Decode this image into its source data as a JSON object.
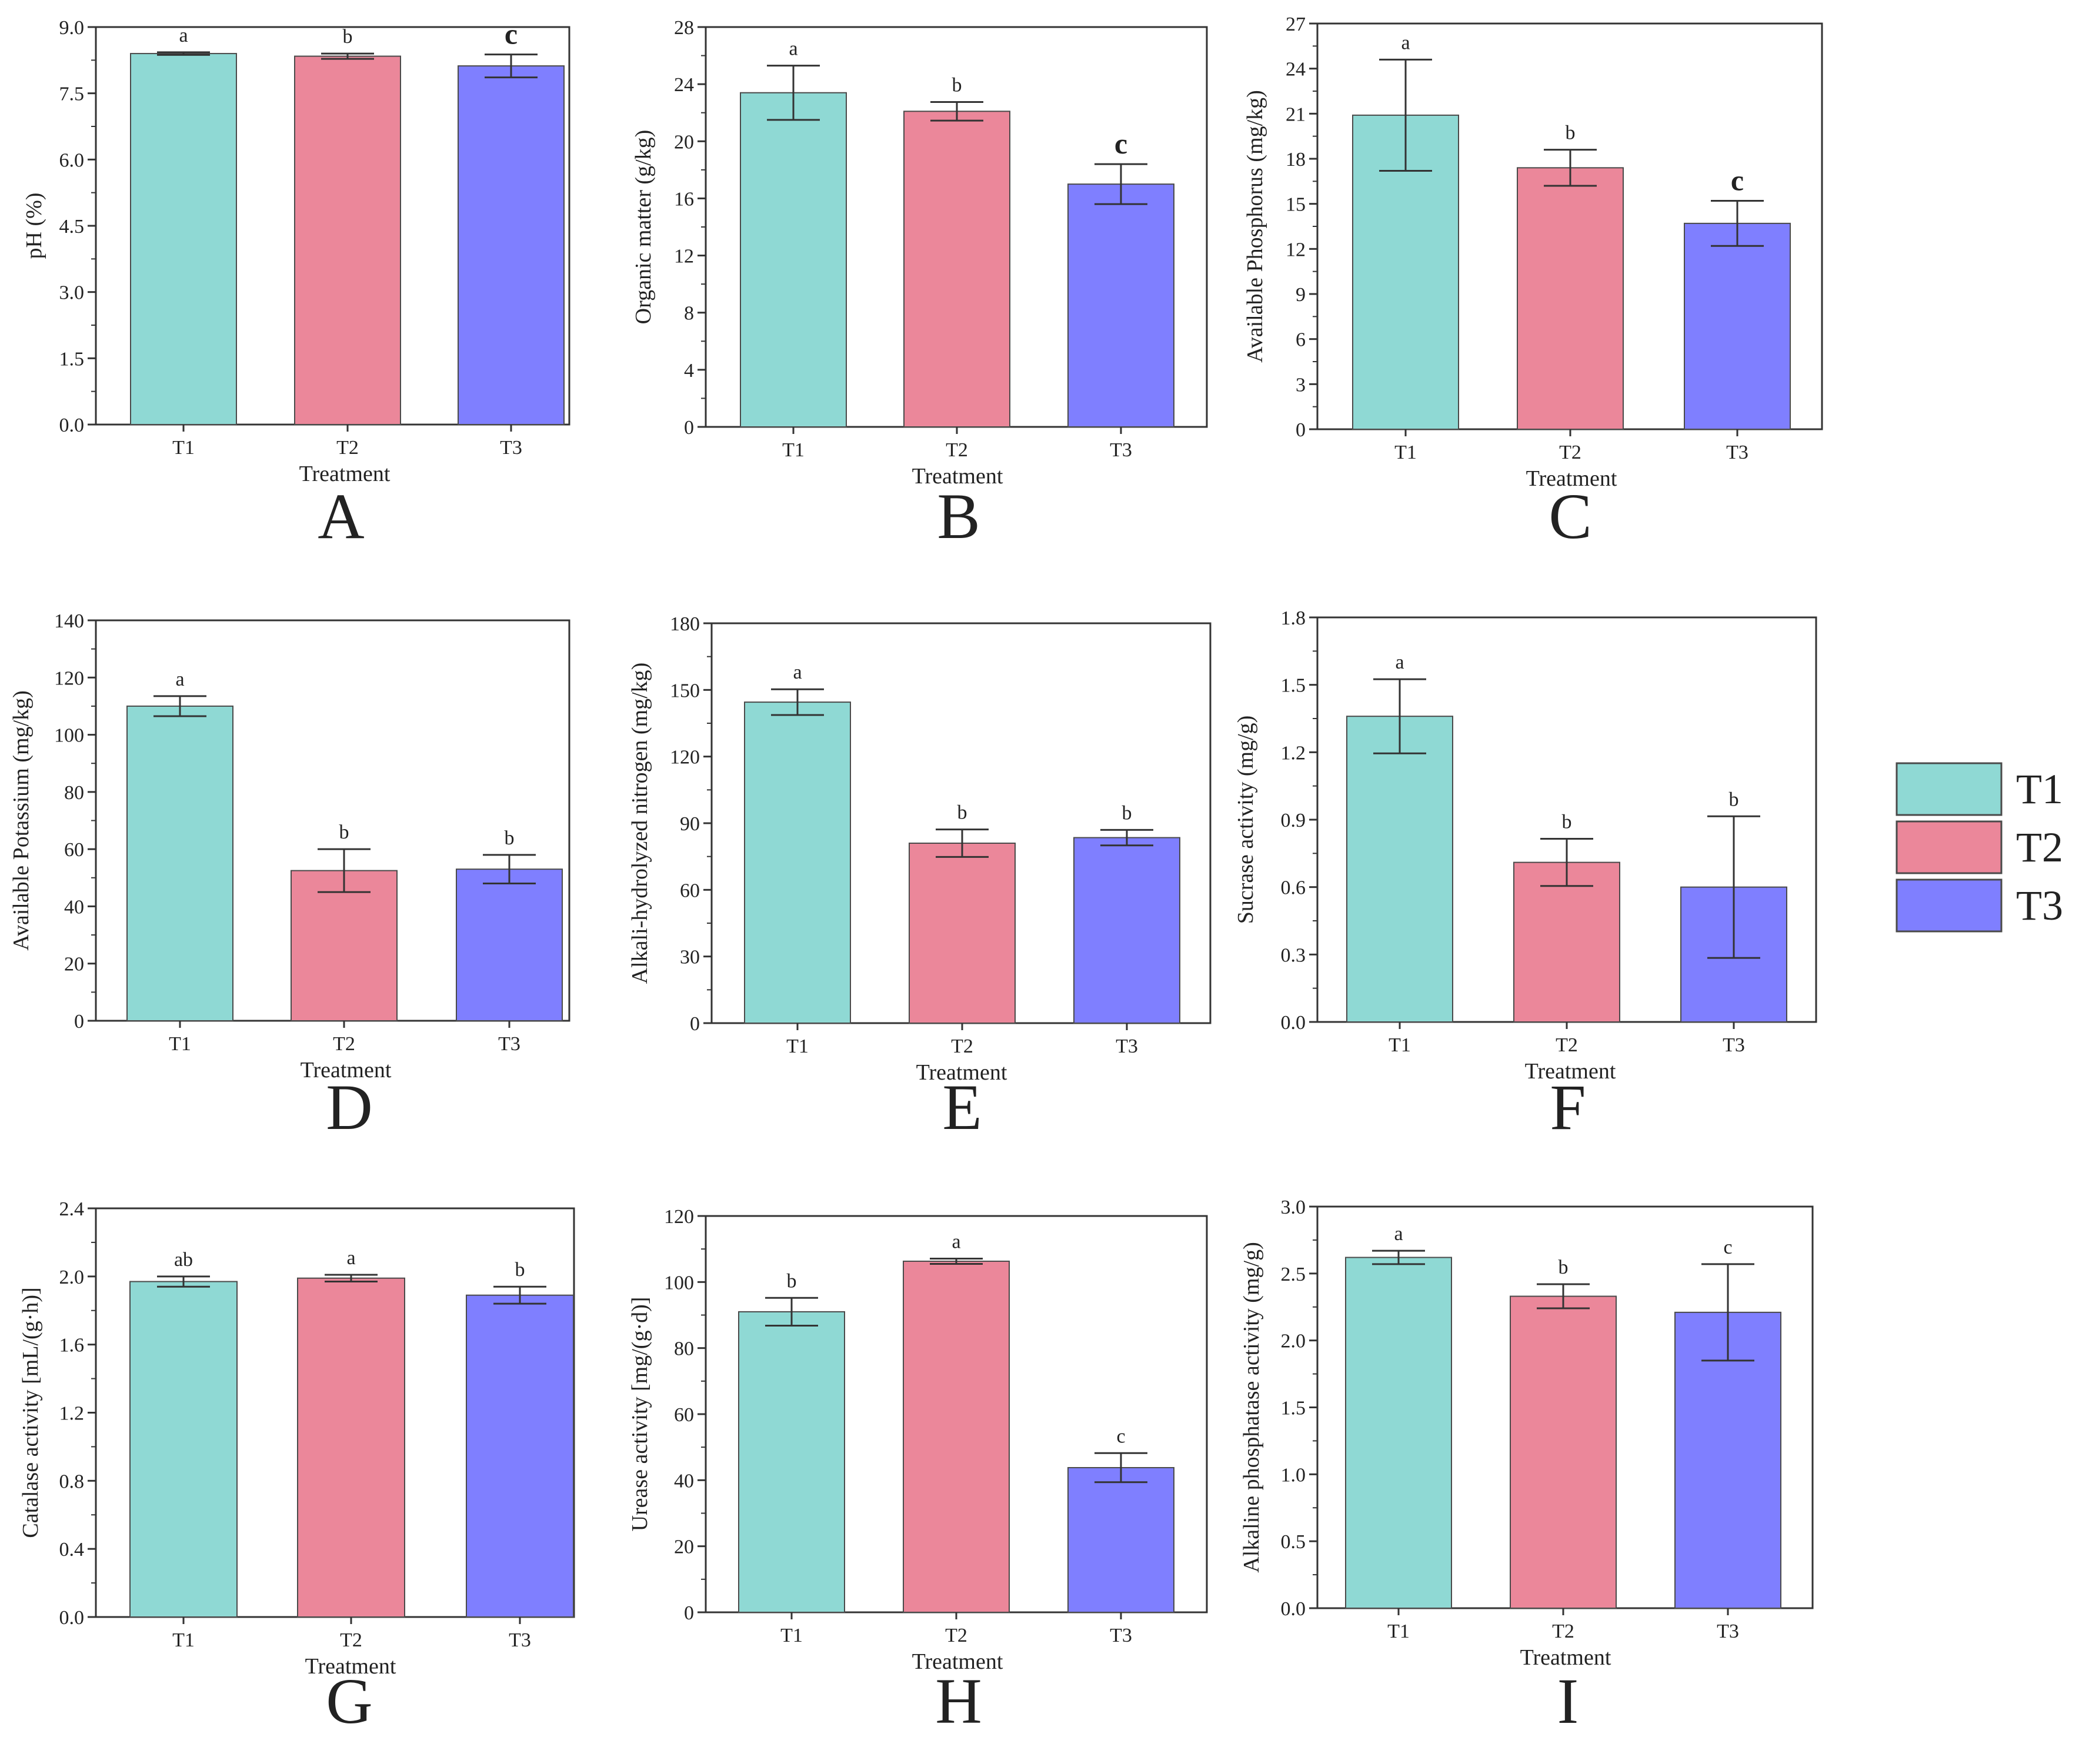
{
  "colors": {
    "T1": "#8fd9d4",
    "T2": "#eb879a",
    "T3": "#7f7fff",
    "axis": "#333333",
    "bar_edge": "#4a4a4a"
  },
  "legend": {
    "items": [
      {
        "label": "T1",
        "color": "#8fd9d4"
      },
      {
        "label": "T2",
        "color": "#eb879a"
      },
      {
        "label": "T3",
        "color": "#7f7fff"
      }
    ],
    "placement": "right"
  },
  "chart_data": [
    {
      "letter": "A",
      "type": "bar",
      "categories": [
        "T1",
        "T2",
        "T3"
      ],
      "values": [
        8.4,
        8.34,
        8.12
      ],
      "errors": [
        0.03,
        0.06,
        0.26
      ],
      "letters": [
        "a",
        "b",
        "c"
      ],
      "ylabel": "pH (%)",
      "xlabel": "Treatment",
      "ylim": [
        0,
        9
      ],
      "yticks": [
        "0.0",
        "1.5",
        "3.0",
        "4.5",
        "6.0",
        "7.5",
        "9.0"
      ]
    },
    {
      "letter": "B",
      "type": "bar",
      "categories": [
        "T1",
        "T2",
        "T3"
      ],
      "values": [
        23.4,
        22.1,
        17.0
      ],
      "errors": [
        1.9,
        0.65,
        1.4
      ],
      "letters": [
        "a",
        "b",
        "c"
      ],
      "ylabel": "Organic matter (g/kg)",
      "xlabel": "Treatment",
      "ylim": [
        0,
        28
      ],
      "yticks": [
        "0",
        "4",
        "8",
        "12",
        "16",
        "20",
        "24",
        "28"
      ]
    },
    {
      "letter": "C",
      "type": "bar",
      "categories": [
        "T1",
        "T2",
        "T3"
      ],
      "values": [
        20.9,
        17.4,
        13.7
      ],
      "errors": [
        3.7,
        1.2,
        1.5
      ],
      "letters": [
        "a",
        "b",
        "c"
      ],
      "ylabel": "Available Phosphorus (mg/kg)",
      "xlabel": "Treatment",
      "ylim": [
        0,
        27
      ],
      "yticks": [
        "0",
        "3",
        "6",
        "9",
        "12",
        "15",
        "18",
        "21",
        "24",
        "27"
      ]
    },
    {
      "letter": "D",
      "type": "bar",
      "categories": [
        "T1",
        "T2",
        "T3"
      ],
      "values": [
        110,
        52.5,
        53
      ],
      "errors": [
        3.5,
        7.5,
        5
      ],
      "letters": [
        "a",
        "b",
        "b"
      ],
      "ylabel": "Available Potassium (mg/kg)",
      "xlabel": "Treatment",
      "ylim": [
        0,
        140
      ],
      "yticks": [
        "0",
        "20",
        "40",
        "60",
        "80",
        "100",
        "120",
        "140"
      ]
    },
    {
      "letter": "E",
      "type": "bar",
      "categories": [
        "T1",
        "T2",
        "T3"
      ],
      "values": [
        144.5,
        81,
        83.5
      ],
      "errors": [
        5.8,
        6.2,
        3.5
      ],
      "letters": [
        "a",
        "b",
        "b"
      ],
      "ylabel": "Alkali-hydrolyzed nitrogen (mg/kg)",
      "xlabel": "Treatment",
      "ylim": [
        0,
        180
      ],
      "yticks": [
        "0",
        "30",
        "60",
        "90",
        "120",
        "150",
        "180"
      ]
    },
    {
      "letter": "F",
      "type": "bar",
      "categories": [
        "T1",
        "T2",
        "T3"
      ],
      "values": [
        1.36,
        0.71,
        0.6
      ],
      "errors": [
        0.165,
        0.105,
        0.315
      ],
      "letters": [
        "a",
        "b",
        "b"
      ],
      "ylabel": "Sucrase activity (mg/g)",
      "xlabel": "Treatment",
      "ylim": [
        0,
        1.8
      ],
      "yticks": [
        "0.0",
        "0.3",
        "0.6",
        "0.9",
        "1.2",
        "1.5",
        "1.8"
      ]
    },
    {
      "letter": "G",
      "type": "bar",
      "categories": [
        "T1",
        "T2",
        "T3"
      ],
      "values": [
        1.97,
        1.99,
        1.89
      ],
      "errors": [
        0.03,
        0.02,
        0.05
      ],
      "letters": [
        "ab",
        "a",
        "b"
      ],
      "ylabel": "Catalase activity [mL/(g·h)]",
      "xlabel": "Treatment",
      "ylim": [
        0,
        2.4
      ],
      "yticks": [
        "0.0",
        "0.4",
        "0.8",
        "1.2",
        "1.6",
        "2.0",
        "2.4"
      ]
    },
    {
      "letter": "H",
      "type": "bar",
      "categories": [
        "T1",
        "T2",
        "T3"
      ],
      "values": [
        91,
        106.3,
        43.8
      ],
      "errors": [
        4.2,
        0.8,
        4.4
      ],
      "letters": [
        "b",
        "a",
        "c"
      ],
      "ylabel": "Urease activity [mg/(g·d)]",
      "xlabel": "Treatment",
      "ylim": [
        0,
        120
      ],
      "yticks": [
        "0",
        "20",
        "40",
        "60",
        "80",
        "100",
        "120"
      ]
    },
    {
      "letter": "I",
      "type": "bar",
      "categories": [
        "T1",
        "T2",
        "T3"
      ],
      "values": [
        2.62,
        2.33,
        2.21
      ],
      "errors": [
        0.05,
        0.09,
        0.36
      ],
      "letters": [
        "a",
        "b",
        "c"
      ],
      "ylabel": "Alkaline phosphatase activity (mg/g)",
      "xlabel": "Treatment",
      "ylim": [
        0,
        3.0
      ],
      "yticks": [
        "0.0",
        "0.5",
        "1.0",
        "1.5",
        "2.0",
        "2.5",
        "3.0"
      ]
    }
  ]
}
